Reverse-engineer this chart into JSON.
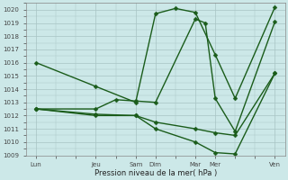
{
  "xlabel": "Pression niveau de la mer( hPa )",
  "background_color": "#cce8e8",
  "grid_color": "#b0c8c8",
  "line_color": "#1a5c1a",
  "ylim": [
    1009,
    1020.5
  ],
  "yticks": [
    1009,
    1010,
    1011,
    1012,
    1013,
    1014,
    1015,
    1016,
    1017,
    1018,
    1019,
    1020
  ],
  "x_labels": [
    "Lun",
    "Jeu",
    "Sam",
    "Dim",
    "Mar",
    "Mer",
    "Ven"
  ],
  "x_positions": [
    0,
    3,
    5,
    6,
    8,
    9,
    12
  ],
  "xlim": [
    -0.5,
    12.5
  ],
  "line1_x": [
    0,
    3,
    5,
    6,
    7,
    8,
    9,
    10,
    12
  ],
  "line1_y": [
    1016.0,
    1014.2,
    1013.0,
    1019.7,
    1020.1,
    1019.8,
    1016.6,
    1013.3,
    1020.2
  ],
  "line2_x": [
    0,
    3,
    4,
    5,
    6,
    8,
    8.5,
    9,
    10,
    12
  ],
  "line2_y": [
    1012.5,
    1012.5,
    1013.2,
    1013.1,
    1013.0,
    1019.3,
    1019.0,
    1013.3,
    1010.8,
    1019.1
  ],
  "line3_x": [
    0,
    3,
    5,
    6,
    8,
    9,
    10,
    12
  ],
  "line3_y": [
    1012.5,
    1012.1,
    1012.0,
    1011.5,
    1011.0,
    1010.7,
    1010.5,
    1015.2
  ],
  "line4_x": [
    0,
    3,
    5,
    6,
    8,
    9,
    10,
    12
  ],
  "line4_y": [
    1012.5,
    1012.0,
    1012.0,
    1011.0,
    1010.0,
    1009.2,
    1009.1,
    1015.2
  ]
}
